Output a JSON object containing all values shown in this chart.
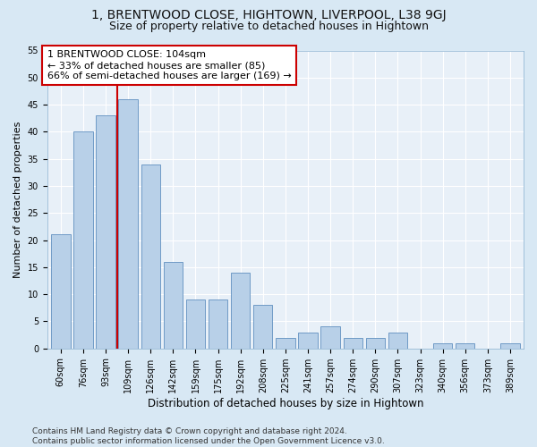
{
  "title": "1, BRENTWOOD CLOSE, HIGHTOWN, LIVERPOOL, L38 9GJ",
  "subtitle": "Size of property relative to detached houses in Hightown",
  "xlabel": "Distribution of detached houses by size in Hightown",
  "ylabel": "Number of detached properties",
  "categories": [
    "60sqm",
    "76sqm",
    "93sqm",
    "109sqm",
    "126sqm",
    "142sqm",
    "159sqm",
    "175sqm",
    "192sqm",
    "208sqm",
    "225sqm",
    "241sqm",
    "257sqm",
    "274sqm",
    "290sqm",
    "307sqm",
    "323sqm",
    "340sqm",
    "356sqm",
    "373sqm",
    "389sqm"
  ],
  "values": [
    21,
    40,
    43,
    46,
    34,
    16,
    9,
    9,
    14,
    8,
    2,
    3,
    4,
    2,
    2,
    3,
    0,
    1,
    1,
    0,
    1
  ],
  "bar_color": "#b8d0e8",
  "bar_edge_color": "#6090c0",
  "bar_width": 0.85,
  "vline_x": 2.5,
  "vline_color": "#cc0000",
  "annotation_text": "1 BRENTWOOD CLOSE: 104sqm\n← 33% of detached houses are smaller (85)\n66% of semi-detached houses are larger (169) →",
  "annotation_box_color": "#ffffff",
  "annotation_box_edge": "#cc0000",
  "ylim": [
    0,
    55
  ],
  "yticks": [
    0,
    5,
    10,
    15,
    20,
    25,
    30,
    35,
    40,
    45,
    50,
    55
  ],
  "footer": "Contains HM Land Registry data © Crown copyright and database right 2024.\nContains public sector information licensed under the Open Government Licence v3.0.",
  "bg_color": "#d8e8f4",
  "plot_bg_color": "#e8f0f8",
  "grid_color": "#ffffff",
  "title_fontsize": 10,
  "subtitle_fontsize": 9,
  "tick_fontsize": 7,
  "ylabel_fontsize": 8,
  "xlabel_fontsize": 8.5,
  "footer_fontsize": 6.5,
  "annotation_fontsize": 8
}
